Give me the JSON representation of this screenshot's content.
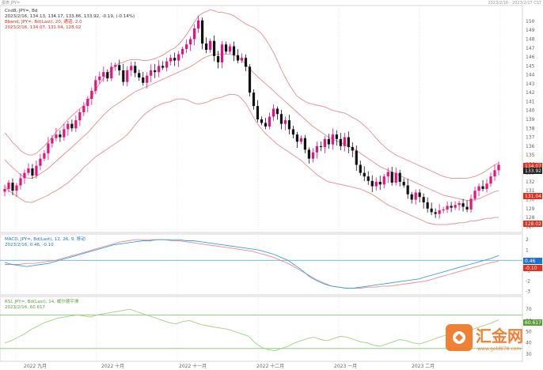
{
  "header": {
    "top_left": "报表 JPY=",
    "top_right": "2023/2/16 - 2023/2/17 CST"
  },
  "panels": {
    "price": {
      "line1": "Cnd8, JPY=, Bd",
      "line2": "2023/2/16, 134.13, 134.17, 133.86, 133.92, -0.19, (-0.14%)",
      "line3": "Bband, JPY=, Bd(Last), 20, 通道, 2.0",
      "line4": "2023/2/16, 134.07, 131.04, 128.02"
    },
    "macd": {
      "line1": "MACD, JPY=, Bd(Last), 12, 26, 9, 移动",
      "line2": "2023/2/16, 0.46, -0.10"
    },
    "rsi": {
      "line1": "RSI, JPY=, Bd(Last), 14, 威尔德平滑",
      "line2": "2023/2/16, 60.617"
    }
  },
  "axis_labels": {
    "price_ticks": [
      "150",
      "149",
      "148",
      "147",
      "146",
      "145",
      "144",
      "143",
      "142",
      "141",
      "140",
      "139",
      "138",
      "137",
      "136",
      "135",
      "134",
      "133",
      "132",
      "131",
      "130",
      "129",
      "128",
      "127"
    ],
    "macd_ticks": [
      "2",
      "1",
      "0",
      "-1",
      "-2",
      "-3"
    ],
    "rsi_ticks": [
      "70",
      "60",
      "50",
      "40",
      "30"
    ],
    "x_ticks": [
      "2022 九月",
      "2022 十月",
      "2022 十一月",
      "2022 十二月",
      "2023 一月",
      "2023 二月"
    ]
  },
  "badges": {
    "bb_upper": "134.07",
    "last_close": "133.92",
    "bb_mid": "131.04",
    "bb_lower": "128.02",
    "macd_line": "0.46",
    "macd_signal": "-0.10",
    "rsi_value": "60.617"
  },
  "watermark": {
    "brand": "汇金网",
    "url": "www.gold678.com"
  },
  "colors": {
    "up": "#e8107a",
    "down": "#111111",
    "bband": "#f08a8a",
    "macd_line": "#3aa0e8",
    "macd_signal": "#f08a8a",
    "rsi_line": "#9ed37a",
    "rsi_band": "#7cc46a",
    "grid": "#dcdcdc",
    "badge_red": "#e0301e",
    "badge_dark": "#222222",
    "badge_blue": "#1e73c8"
  },
  "chart_data": [
    {
      "type": "candlestick",
      "title": "Cnd8, JPY=, Bd",
      "ylim": [
        126.5,
        151.5
      ],
      "closes": [
        131.2,
        131.9,
        131.0,
        131.6,
        132.4,
        133.0,
        133.5,
        132.7,
        133.8,
        134.6,
        135.2,
        136.3,
        136.9,
        137.3,
        137.0,
        137.9,
        138.5,
        138.0,
        138.9,
        139.8,
        140.5,
        141.3,
        142.2,
        143.4,
        143.8,
        144.3,
        143.6,
        144.9,
        145.1,
        144.5,
        143.2,
        144.5,
        145.0,
        144.2,
        143.7,
        143.1,
        143.9,
        144.5,
        144.3,
        145.0,
        144.8,
        145.5,
        145.9,
        145.6,
        146.3,
        146.9,
        147.4,
        148.0,
        149.2,
        150.1,
        147.5,
        146.8,
        147.8,
        146.1,
        145.4,
        147.4,
        146.6,
        147.2,
        146.2,
        145.6,
        145.9,
        144.9,
        142.0,
        140.5,
        139.0,
        138.6,
        138.2,
        139.3,
        140.2,
        139.6,
        138.5,
        138.9,
        137.9,
        137.3,
        136.5,
        136.9,
        135.6,
        134.6,
        135.3,
        136.0,
        135.9,
        136.8,
        136.2,
        137.3,
        136.8,
        136.0,
        137.0,
        135.9,
        135.5,
        133.9,
        133.0,
        132.6,
        132.1,
        131.5,
        132.0,
        131.7,
        132.6,
        133.1,
        131.9,
        133.0,
        132.0,
        131.6,
        130.6,
        130.0,
        130.8,
        130.3,
        129.7,
        129.0,
        128.6,
        128.4,
        128.8,
        128.9,
        129.3,
        129.1,
        129.4,
        129.6,
        129.2,
        128.9,
        130.1,
        131.0,
        131.5,
        131.2,
        131.8,
        132.6,
        133.3,
        133.9
      ],
      "bband_upper": [
        137.5,
        137.0,
        136.4,
        136.0,
        135.5,
        135.2,
        135.0,
        135.0,
        135.2,
        135.6,
        136.0,
        136.5,
        137.0,
        137.6,
        138.0,
        138.5,
        139.0,
        139.4,
        139.8,
        140.2,
        140.5,
        141.0,
        141.6,
        142.3,
        143.0,
        143.6,
        144.1,
        144.6,
        145.0,
        145.3,
        145.4,
        145.6,
        145.7,
        145.7,
        145.7,
        145.6,
        145.6,
        145.7,
        145.8,
        146.0,
        146.2,
        146.5,
        146.8,
        147.0,
        147.4,
        147.9,
        148.5,
        149.2,
        149.9,
        150.6,
        150.9,
        151.1,
        151.3,
        151.2,
        151.0,
        151.0,
        150.9,
        150.8,
        150.6,
        150.3,
        150.0,
        149.7,
        149.5,
        149.3,
        149.0,
        148.6,
        148.0,
        147.3,
        146.5,
        145.6,
        144.6,
        143.7,
        142.9,
        142.2,
        141.6,
        141.3,
        141.0,
        140.8,
        140.7,
        140.6,
        140.5,
        140.4,
        140.2,
        140.0,
        139.9,
        139.8,
        139.7,
        139.5,
        139.2,
        139.0,
        138.7,
        138.3,
        137.9,
        137.4,
        136.9,
        136.4,
        136.0,
        135.6,
        135.3,
        135.0,
        134.8,
        134.6,
        134.4,
        134.2,
        134.0,
        133.8,
        133.6,
        133.4,
        133.2,
        133.0,
        132.8,
        132.6,
        132.5,
        132.4,
        132.4,
        132.4,
        132.4,
        132.4,
        132.5,
        132.6,
        132.8,
        133.0,
        133.3,
        133.6,
        133.9,
        134.1
      ],
      "bband_mid": [
        134.5,
        134.0,
        133.6,
        133.2,
        132.8,
        132.5,
        132.4,
        132.4,
        132.6,
        132.9,
        133.2,
        133.5,
        133.9,
        134.3,
        134.7,
        135.1,
        135.5,
        135.9,
        136.3,
        136.7,
        137.1,
        137.5,
        138.0,
        138.5,
        139.0,
        139.5,
        139.9,
        140.3,
        140.6,
        140.9,
        141.2,
        141.5,
        141.8,
        142.1,
        142.3,
        142.5,
        142.7,
        142.9,
        143.1,
        143.3,
        143.5,
        143.7,
        143.9,
        144.1,
        144.3,
        144.5,
        144.7,
        144.9,
        145.2,
        145.5,
        145.8,
        146.0,
        146.2,
        146.3,
        146.3,
        146.3,
        146.3,
        146.3,
        146.2,
        146.0,
        145.6,
        145.2,
        144.7,
        144.2,
        143.8,
        143.4,
        143.0,
        142.6,
        142.2,
        141.8,
        141.4,
        141.0,
        140.6,
        140.2,
        139.8,
        139.4,
        139.0,
        138.6,
        138.2,
        137.9,
        137.6,
        137.3,
        137.0,
        136.8,
        136.6,
        136.4,
        136.2,
        136.0,
        135.8,
        135.5,
        135.2,
        134.9,
        134.6,
        134.3,
        134.0,
        133.7,
        133.5,
        133.3,
        133.1,
        132.9,
        132.7,
        132.5,
        132.3,
        132.1,
        131.9,
        131.7,
        131.5,
        131.3,
        131.1,
        130.9,
        130.7,
        130.5,
        130.4,
        130.3,
        130.2,
        130.1,
        130.0,
        129.9,
        129.9,
        130.0,
        130.1,
        130.3,
        130.5,
        130.7,
        130.9,
        131.0
      ],
      "bband_lower": [
        131.5,
        131.0,
        130.7,
        130.4,
        130.1,
        129.8,
        129.7,
        129.7,
        129.9,
        130.1,
        130.3,
        130.5,
        130.8,
        131.0,
        131.3,
        131.6,
        131.9,
        132.3,
        132.7,
        133.1,
        133.6,
        134.0,
        134.4,
        134.8,
        135.1,
        135.4,
        135.7,
        136.0,
        136.3,
        136.6,
        136.9,
        137.3,
        137.8,
        138.4,
        138.9,
        139.4,
        139.8,
        140.1,
        140.4,
        140.6,
        140.8,
        140.9,
        141.0,
        141.2,
        141.3,
        141.3,
        141.2,
        141.0,
        140.8,
        140.7,
        140.8,
        140.9,
        141.1,
        141.3,
        141.4,
        141.5,
        141.7,
        141.8,
        141.8,
        141.7,
        141.3,
        140.8,
        140.0,
        139.2,
        138.5,
        137.9,
        137.4,
        137.0,
        136.6,
        136.2,
        135.9,
        135.6,
        135.3,
        135.0,
        134.7,
        134.4,
        134.0,
        133.6,
        133.2,
        132.8,
        132.5,
        132.2,
        132.0,
        131.9,
        131.8,
        131.7,
        131.6,
        131.5,
        131.4,
        131.3,
        131.2,
        131.0,
        130.8,
        130.6,
        130.3,
        130.0,
        129.7,
        129.4,
        129.2,
        129.0,
        128.8,
        128.6,
        128.4,
        128.2,
        128.0,
        127.8,
        127.6,
        127.4,
        127.3,
        127.2,
        127.2,
        127.2,
        127.2,
        127.3,
        127.3,
        127.4,
        127.4,
        127.5,
        127.6,
        127.6,
        127.7,
        127.8,
        127.9,
        127.9,
        128.0,
        128.0
      ]
    },
    {
      "type": "line",
      "title": "MACD, JPY=, Bd(Last), 12, 26, 9",
      "ylim": [
        -3.2,
        2.4
      ],
      "series": [
        {
          "name": "MACD",
          "values": [
            -0.2,
            -0.4,
            -0.5,
            -0.6,
            -0.5,
            -0.4,
            -0.3,
            -0.1,
            0.1,
            0.3,
            0.5,
            0.7,
            0.9,
            1.1,
            1.3,
            1.5,
            1.6,
            1.7,
            1.8,
            1.9,
            1.9,
            2.0,
            2.0,
            2.0,
            2.0,
            1.9,
            1.9,
            1.8,
            1.7,
            1.6,
            1.5,
            1.4,
            1.3,
            1.2,
            1.1,
            1.0,
            0.8,
            0.6,
            0.3,
            0.0,
            -0.5,
            -1.0,
            -1.6,
            -2.0,
            -2.3,
            -2.5,
            -2.6,
            -2.7,
            -2.7,
            -2.6,
            -2.5,
            -2.4,
            -2.3,
            -2.2,
            -2.1,
            -2.0,
            -1.9,
            -1.8,
            -1.6,
            -1.4,
            -1.2,
            -1.0,
            -0.8,
            -0.6,
            -0.4,
            -0.2,
            0.0,
            0.2,
            0.46
          ]
        },
        {
          "name": "Signal",
          "values": [
            -0.4,
            -0.4,
            -0.4,
            -0.3,
            -0.3,
            -0.2,
            -0.1,
            0.0,
            0.2,
            0.4,
            0.6,
            0.8,
            1.0,
            1.2,
            1.4,
            1.6,
            1.8,
            1.9,
            2.0,
            2.0,
            2.0,
            2.0,
            2.0,
            1.9,
            1.9,
            1.8,
            1.7,
            1.6,
            1.5,
            1.4,
            1.3,
            1.2,
            1.1,
            1.0,
            0.9,
            0.7,
            0.5,
            0.3,
            0.0,
            -0.3,
            -0.7,
            -1.1,
            -1.5,
            -1.9,
            -2.2,
            -2.5,
            -2.6,
            -2.7,
            -2.7,
            -2.7,
            -2.6,
            -2.6,
            -2.5,
            -2.5,
            -2.4,
            -2.3,
            -2.2,
            -2.1,
            -2.0,
            -1.8,
            -1.6,
            -1.4,
            -1.2,
            -1.0,
            -0.8,
            -0.6,
            -0.4,
            -0.2,
            -0.1
          ]
        }
      ]
    },
    {
      "type": "line",
      "title": "RSI, JPY=, Bd(Last), 14",
      "ylim": [
        25,
        80
      ],
      "band": [
        35,
        65
      ],
      "series": [
        {
          "name": "RSI",
          "values": [
            40,
            42,
            45,
            48,
            52,
            55,
            58,
            60,
            62,
            63,
            64,
            65,
            64,
            63,
            65,
            66,
            67,
            68,
            69,
            70,
            68,
            66,
            64,
            62,
            60,
            58,
            57,
            59,
            60,
            58,
            56,
            55,
            54,
            53,
            52,
            50,
            48,
            46,
            40,
            36,
            34,
            33,
            35,
            37,
            40,
            42,
            44,
            45,
            43,
            42,
            44,
            46,
            45,
            43,
            41,
            40,
            38,
            37,
            39,
            41,
            43,
            42,
            40,
            39,
            41,
            43,
            45,
            47,
            46,
            48,
            50,
            52,
            54,
            56,
            58,
            60.6
          ]
        }
      ]
    }
  ]
}
